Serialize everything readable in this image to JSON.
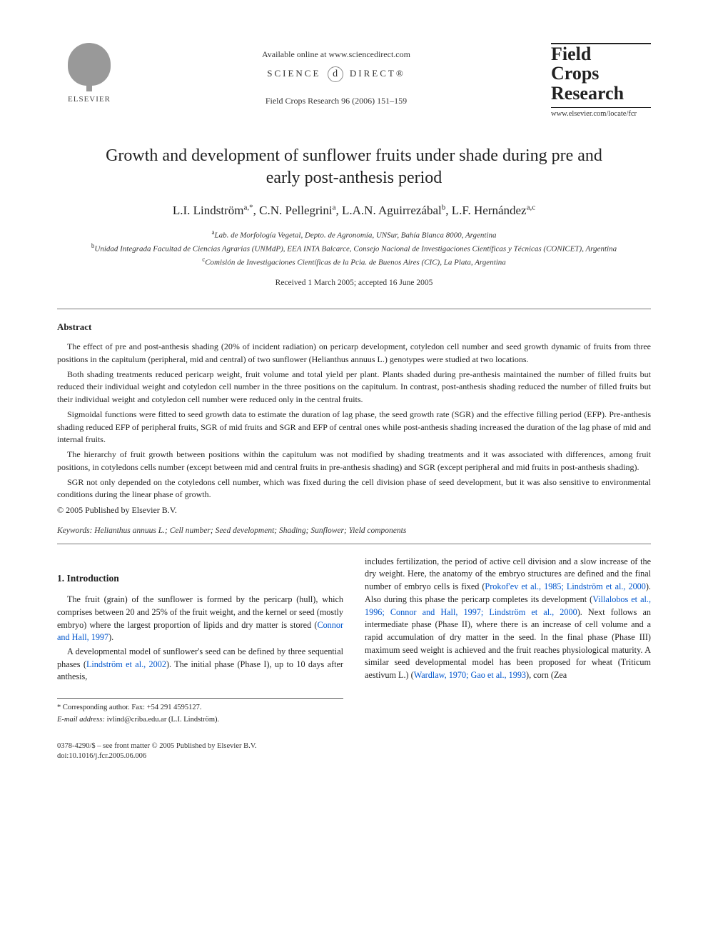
{
  "header": {
    "publisher_label": "ELSEVIER",
    "available_line": "Available online at www.sciencedirect.com",
    "sciencedirect_left": "SCIENCE",
    "sciencedirect_right": "DIRECT®",
    "journal_ref": "Field Crops Research 96 (2006) 151–159",
    "journal_title_l1": "Field",
    "journal_title_l2": "Crops",
    "journal_title_l3": "Research",
    "journal_url": "www.elsevier.com/locate/fcr"
  },
  "title": "Growth and development of sunflower fruits under shade during pre and early post-anthesis period",
  "authors": "L.I. Lindström a,*, C.N. Pellegrini a, L.A.N. Aguirrezábal b, L.F. Hernández a,c",
  "affiliations": {
    "a": "Lab. de Morfología Vegetal, Depto. de Agronomía, UNSur, Bahía Blanca 8000, Argentina",
    "b": "Unidad Integrada Facultad de Ciencias Agrarias (UNMdP), EEA INTA Balcarce, Consejo Nacional de Investigaciones Científicas y Técnicas (CONICET), Argentina",
    "c": "Comisión de Investigaciones Científicas de la Pcia. de Buenos Aires (CIC), La Plata, Argentina"
  },
  "received": "Received 1 March 2005; accepted 16 June 2005",
  "abstract": {
    "heading": "Abstract",
    "p1": "The effect of pre and post-anthesis shading (20% of incident radiation) on pericarp development, cotyledon cell number and seed growth dynamic of fruits from three positions in the capitulum (peripheral, mid and central) of two sunflower (Helianthus annuus L.) genotypes were studied at two locations.",
    "p2": "Both shading treatments reduced pericarp weight, fruit volume and total yield per plant. Plants shaded during pre-anthesis maintained the number of filled fruits but reduced their individual weight and cotyledon cell number in the three positions on the capitulum. In contrast, post-anthesis shading reduced the number of filled fruits but their individual weight and cotyledon cell number were reduced only in the central fruits.",
    "p3": "Sigmoidal functions were fitted to seed growth data to estimate the duration of lag phase, the seed growth rate (SGR) and the effective filling period (EFP). Pre-anthesis shading reduced EFP of peripheral fruits, SGR of mid fruits and SGR and EFP of central ones while post-anthesis shading increased the duration of the lag phase of mid and internal fruits.",
    "p4": "The hierarchy of fruit growth between positions within the capitulum was not modified by shading treatments and it was associated with differences, among fruit positions, in cotyledons cells number (except between mid and central fruits in pre-anthesis shading) and SGR (except peripheral and mid fruits in post-anthesis shading).",
    "p5": "SGR not only depended on the cotyledons cell number, which was fixed during the cell division phase of seed development, but it was also sensitive to environmental conditions during the linear phase of growth.",
    "copyright": "© 2005 Published by Elsevier B.V."
  },
  "keywords": {
    "label": "Keywords:",
    "text": "Helianthus annuus L.; Cell number; Seed development; Shading; Sunflower; Yield components"
  },
  "section1": {
    "heading": "1.  Introduction",
    "left_p1a": "The fruit (grain) of the sunflower is formed by the pericarp (hull), which comprises between 20 and 25% of the fruit weight, and the kernel or seed (mostly embryo) where the largest proportion of lipids and dry matter is stored (",
    "left_p1_link": "Connor and Hall, 1997",
    "left_p1b": ").",
    "left_p2a": "A developmental model of sunflower's seed can be defined by three sequential phases (",
    "left_p2_link": "Lindström et al., 2002",
    "left_p2b": "). The initial phase (Phase I), up to 10 days after anthesis,",
    "right_p1a": "includes fertilization, the period of active cell division and a slow increase of the dry weight. Here, the anatomy of the embryo structures are defined and the final number of embryo cells is fixed (",
    "right_p1_link1": "Prokof'ev et al., 1985; Lindström et al., 2000",
    "right_p1b": "). Also during this phase the pericarp completes its development (",
    "right_p1_link2": "Villalobos et al., 1996; Connor and Hall, 1997; Lindström et al., 2000",
    "right_p1c": "). Next follows an intermediate phase (Phase II), where there is an increase of cell volume and a rapid accumulation of dry matter in the seed. In the final phase (Phase III) maximum seed weight is achieved and the fruit reaches physiological maturity. A similar seed developmental model has been proposed for wheat (Triticum aestivum L.) (",
    "right_p1_link3": "Wardlaw, 1970; Gao et al., 1993",
    "right_p1d": "), corn (Zea"
  },
  "footnote": {
    "corresp": "* Corresponding author. Fax: +54 291 4595127.",
    "email_label": "E-mail address:",
    "email": "ivlind@criba.edu.ar (L.I. Lindström)."
  },
  "footer": {
    "line1": "0378-4290/$ – see front matter © 2005 Published by Elsevier B.V.",
    "line2": "doi:10.1016/j.fcr.2005.06.006"
  }
}
